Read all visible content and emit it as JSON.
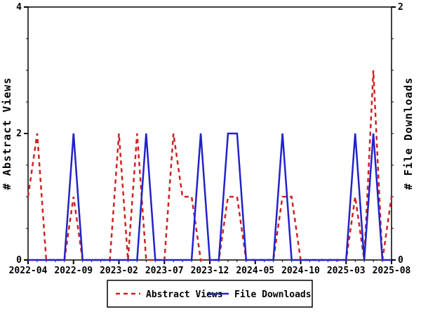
{
  "chart_data": {
    "type": "line",
    "title": "",
    "grid": false,
    "legend_position": "bottom-center",
    "x_tick_every": 5,
    "x_tick_labels": [
      "2022-04",
      "2022-09",
      "2023-02",
      "2023-07",
      "2023-12",
      "2024-05",
      "2024-10",
      "2025-03",
      "2025-08"
    ],
    "months": [
      "2022-04",
      "2022-05",
      "2022-06",
      "2022-07",
      "2022-08",
      "2022-09",
      "2022-10",
      "2022-11",
      "2022-12",
      "2023-01",
      "2023-02",
      "2023-03",
      "2023-04",
      "2023-05",
      "2023-06",
      "2023-07",
      "2023-08",
      "2023-09",
      "2023-10",
      "2023-11",
      "2023-12",
      "2024-01",
      "2024-02",
      "2024-03",
      "2024-04",
      "2024-05",
      "2024-06",
      "2024-07",
      "2024-08",
      "2024-09",
      "2024-10",
      "2024-11",
      "2024-12",
      "2025-01",
      "2025-02",
      "2025-03",
      "2025-04",
      "2025-05",
      "2025-06",
      "2025-07",
      "2025-08"
    ],
    "left_axis": {
      "label": "# Abstract Views",
      "min": 0,
      "max": 4,
      "major_ticks": [
        0,
        2,
        4
      ],
      "minor_step": 0.5
    },
    "right_axis": {
      "label": "# File Downloads",
      "min": 0,
      "max": 2,
      "major_ticks": [
        0,
        2
      ],
      "minor_step": 0.25
    },
    "series": [
      {
        "name": "Abstract Views",
        "axis": "left",
        "style": "dashed",
        "color": "#cc2222",
        "values": [
          1,
          2,
          0,
          0,
          0,
          1,
          0,
          0,
          0,
          0,
          2,
          0,
          2,
          0,
          0,
          0,
          2,
          1,
          1,
          0,
          0,
          0,
          1,
          1,
          0,
          0,
          0,
          0,
          1,
          1,
          0,
          0,
          0,
          0,
          0,
          0,
          1,
          0,
          3,
          0,
          1
        ]
      },
      {
        "name": "File Downloads",
        "axis": "right",
        "style": "solid",
        "color": "#2222cc",
        "values": [
          0,
          0,
          0,
          0,
          0,
          1,
          0,
          0,
          0,
          0,
          0,
          0,
          0,
          1,
          0,
          0,
          0,
          0,
          0,
          1,
          0,
          0,
          1,
          1,
          0,
          0,
          0,
          0,
          1,
          0,
          0,
          0,
          0,
          0,
          0,
          0,
          1,
          0,
          1,
          0,
          0
        ]
      }
    ],
    "legend": {
      "entries": [
        "Abstract Views",
        "File Downloads"
      ]
    }
  },
  "colors": {
    "abstract_views": "#cc2222",
    "file_downloads": "#2222cc",
    "frame": "#000000",
    "background": "#ffffff"
  }
}
